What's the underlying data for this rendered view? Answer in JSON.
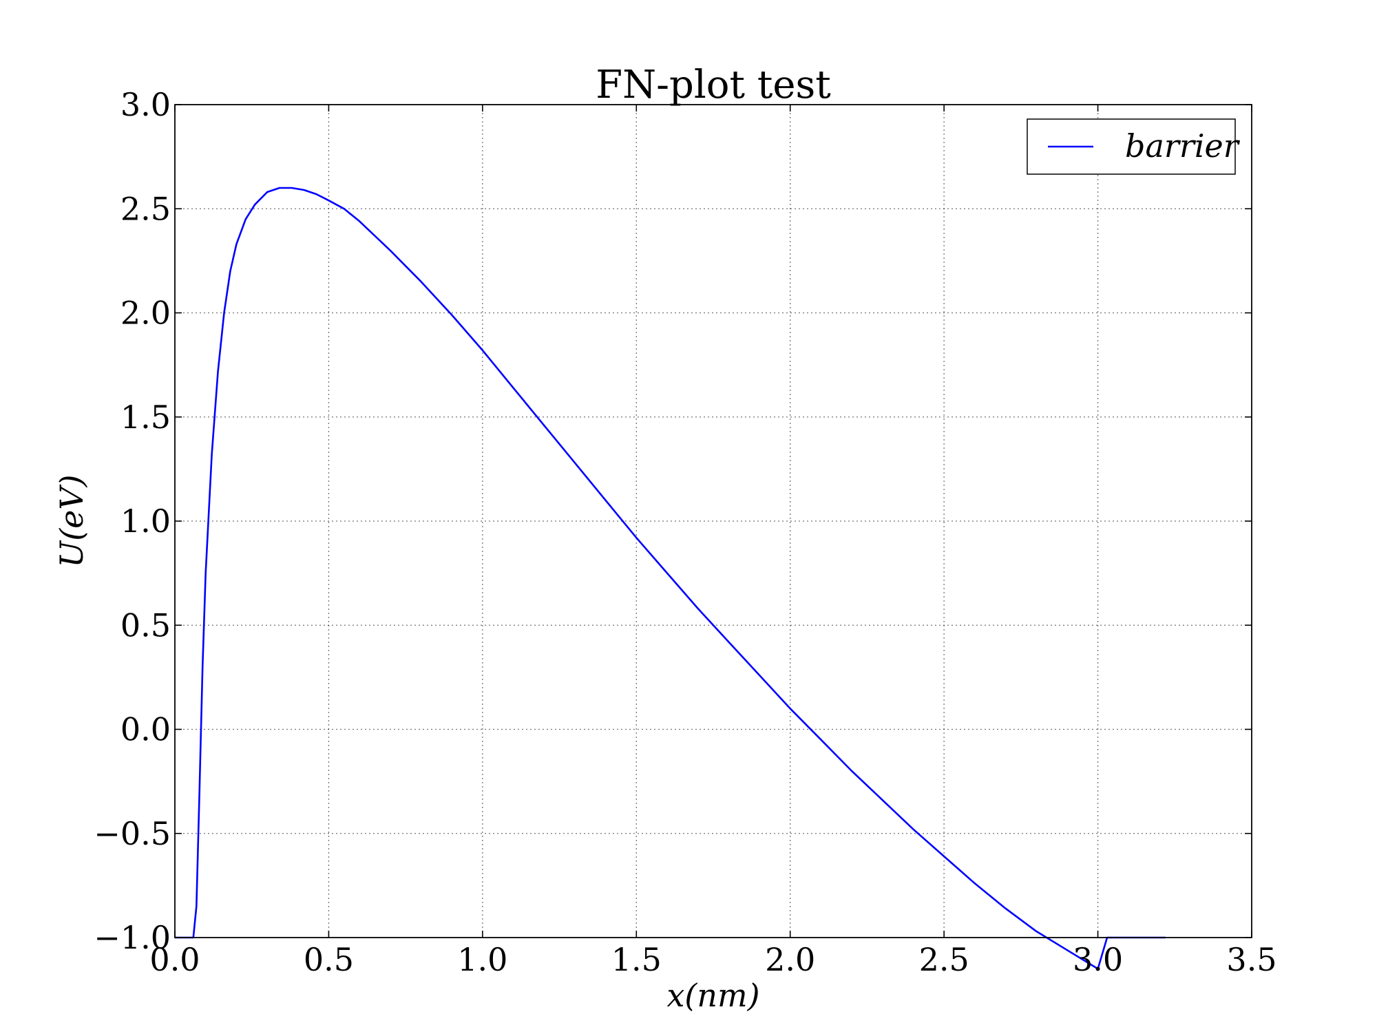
{
  "chart_data": {
    "type": "line",
    "title": "FN-plot test",
    "xlabel": "x(nm)",
    "ylabel": "U(eV)",
    "xlim": [
      0.0,
      3.5
    ],
    "ylim": [
      -1.0,
      3.0
    ],
    "xticks": [
      "0.0",
      "0.5",
      "1.0",
      "1.5",
      "2.0",
      "2.5",
      "3.0",
      "3.5"
    ],
    "yticks": [
      "3.0",
      "2.5",
      "2.0",
      "1.5",
      "1.0",
      "0.5",
      "0.0",
      "−0.5",
      "−1.0"
    ],
    "grid": true,
    "legend_position": "top-right",
    "series": [
      {
        "name": "barrier",
        "color": "#0000ff",
        "x": [
          0.0,
          0.06,
          0.07,
          0.08,
          0.09,
          0.1,
          0.12,
          0.14,
          0.16,
          0.18,
          0.2,
          0.23,
          0.26,
          0.3,
          0.34,
          0.38,
          0.42,
          0.46,
          0.5,
          0.55,
          0.6,
          0.7,
          0.8,
          0.9,
          1.0,
          1.1,
          1.2,
          1.3,
          1.4,
          1.5,
          1.6,
          1.7,
          1.8,
          1.9,
          2.0,
          2.1,
          2.2,
          2.3,
          2.4,
          2.5,
          2.6,
          2.7,
          2.8,
          2.9,
          3.0,
          3.03,
          3.22
        ],
        "y": [
          -1.0,
          -1.0,
          -0.85,
          -0.3,
          0.3,
          0.75,
          1.32,
          1.72,
          2.0,
          2.2,
          2.33,
          2.45,
          2.52,
          2.58,
          2.6,
          2.6,
          2.59,
          2.57,
          2.54,
          2.5,
          2.44,
          2.3,
          2.15,
          1.99,
          1.82,
          1.64,
          1.46,
          1.28,
          1.1,
          0.92,
          0.75,
          0.58,
          0.42,
          0.26,
          0.1,
          -0.05,
          -0.2,
          -0.34,
          -0.48,
          -0.61,
          -0.74,
          -0.86,
          -0.97,
          -1.06,
          -1.15,
          -1.0,
          -1.0
        ]
      }
    ]
  }
}
